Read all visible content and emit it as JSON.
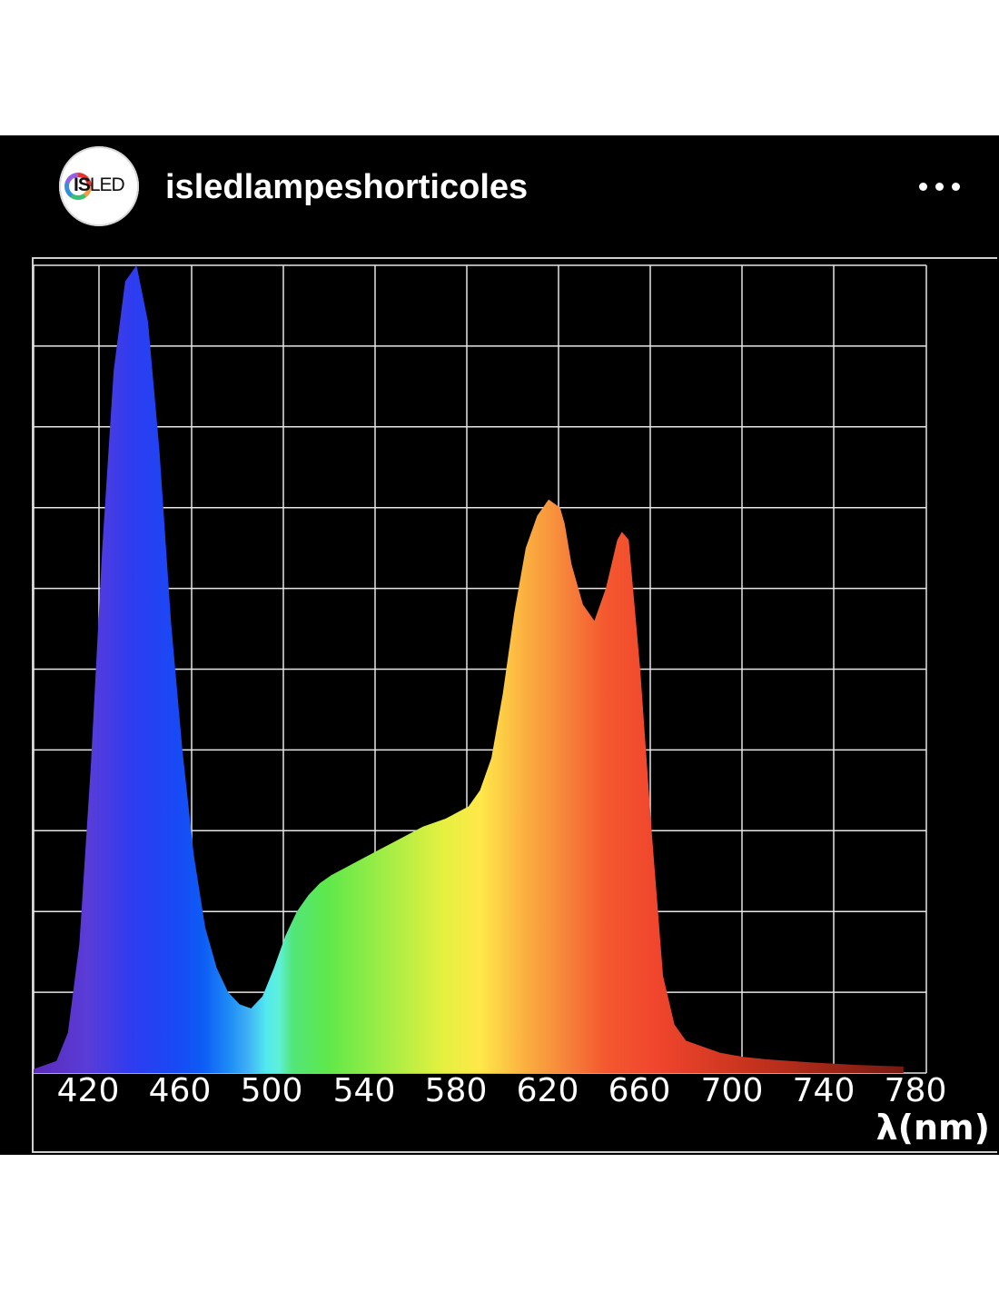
{
  "post": {
    "username": "isledlampeshorticoles",
    "avatar_logo": {
      "bold": "IS",
      "rest": "LED"
    },
    "more_icon": "more-horizontal-icon"
  },
  "chart_data": {
    "type": "area",
    "title": "",
    "xlabel": "λ(nm)",
    "ylabel": "",
    "xlim": [
      400,
      790
    ],
    "ylim": [
      0,
      1
    ],
    "grid": true,
    "x_ticks": [
      420,
      460,
      500,
      540,
      580,
      620,
      660,
      700,
      740,
      780
    ],
    "fill": "visible-spectrum-gradient",
    "series": [
      {
        "x": [
          400,
          410,
          415,
          420,
          425,
          430,
          435,
          440,
          445,
          450,
          455,
          460,
          465,
          470,
          475,
          480,
          485,
          490,
          495,
          500,
          505,
          510,
          515,
          520,
          525,
          530,
          540,
          550,
          560,
          570,
          580,
          590,
          595,
          600,
          605,
          610,
          615,
          620,
          625,
          630,
          632,
          635,
          640,
          645,
          650,
          655,
          657,
          660,
          665,
          670,
          675,
          680,
          685,
          690,
          700,
          710,
          720,
          740,
          760,
          780
        ],
        "y": [
          0.005,
          0.015,
          0.05,
          0.16,
          0.38,
          0.65,
          0.87,
          0.98,
          1.0,
          0.93,
          0.77,
          0.56,
          0.4,
          0.27,
          0.18,
          0.13,
          0.1,
          0.085,
          0.08,
          0.095,
          0.13,
          0.17,
          0.2,
          0.22,
          0.235,
          0.245,
          0.26,
          0.275,
          0.29,
          0.305,
          0.315,
          0.33,
          0.35,
          0.39,
          0.47,
          0.57,
          0.65,
          0.69,
          0.71,
          0.7,
          0.68,
          0.63,
          0.58,
          0.56,
          0.6,
          0.66,
          0.67,
          0.66,
          0.5,
          0.3,
          0.12,
          0.06,
          0.04,
          0.035,
          0.025,
          0.02,
          0.017,
          0.013,
          0.01,
          0.008
        ]
      }
    ]
  }
}
